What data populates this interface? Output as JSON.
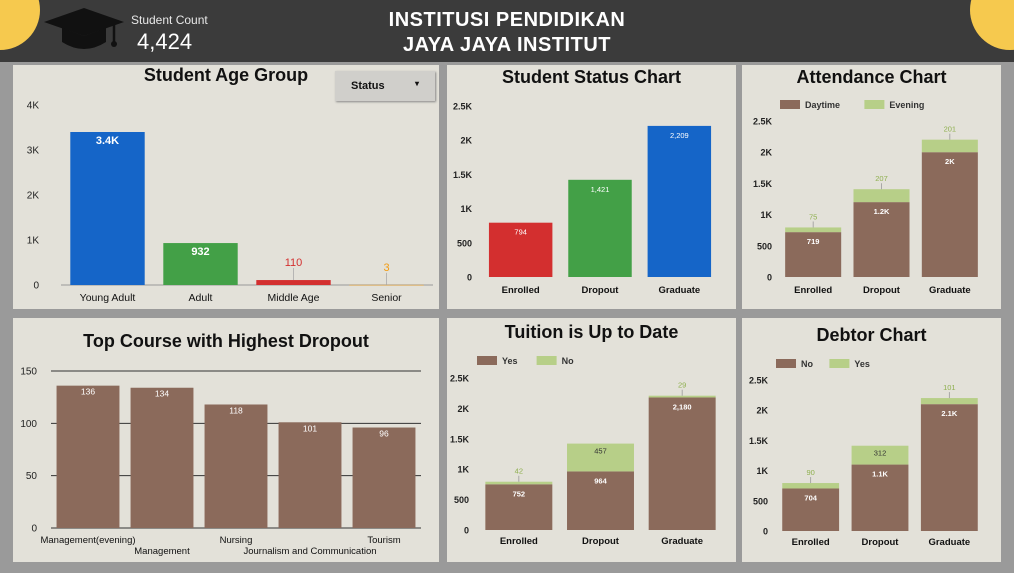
{
  "header": {
    "student_count_label": "Student Count",
    "student_count_value": "4,424",
    "title_line1": "INSTITUSI PENDIDIKAN",
    "title_line2": "JAYA JAYA INSTITUT"
  },
  "filter": {
    "label": "Status",
    "arrow": "▾"
  },
  "colors": {
    "blue": "#1565c8",
    "green": "#43a047",
    "red": "#d32f2f",
    "orange": "#f39c12",
    "brown": "#8b6a5b",
    "light_green": "#b7cf88",
    "panel": "#e3e1d9",
    "header": "#3b3b3b",
    "accent_yellow": "#f6c94e"
  },
  "chart_data": [
    {
      "id": "age",
      "type": "bar",
      "title": "Student Age Group",
      "categories": [
        "Young Adult",
        "Adult",
        "Middle Age",
        "Senior"
      ],
      "values": [
        3400,
        932,
        110,
        3
      ],
      "data_labels": [
        "3.4K",
        "932",
        "110",
        "3"
      ],
      "colors": [
        "#1565c8",
        "#43a047",
        "#d32f2f",
        "#f39c12"
      ],
      "ylim": [
        0,
        4000
      ],
      "yticks": [
        0,
        1000,
        2000,
        3000,
        4000
      ],
      "ytick_labels": [
        "0",
        "1K",
        "2K",
        "3K",
        "4K"
      ],
      "grid": false
    },
    {
      "id": "status",
      "type": "bar",
      "title": "Student Status Chart",
      "categories": [
        "Enrolled",
        "Dropout",
        "Graduate"
      ],
      "values": [
        794,
        1421,
        2209
      ],
      "data_labels": [
        "794",
        "1,421",
        "2,209"
      ],
      "colors": [
        "#d32f2f",
        "#43a047",
        "#1565c8"
      ],
      "ylim": [
        0,
        2500
      ],
      "yticks": [
        0,
        500,
        1000,
        1500,
        2000,
        2500
      ],
      "ytick_labels": [
        "0",
        "500",
        "1K",
        "1.5K",
        "2K",
        "2.5K"
      ],
      "grid": false
    },
    {
      "id": "attendance",
      "type": "bar",
      "stacked": true,
      "title": "Attendance Chart",
      "categories": [
        "Enrolled",
        "Dropout",
        "Graduate"
      ],
      "series": [
        {
          "name": "Daytime",
          "values": [
            719,
            1200,
            2000
          ],
          "labels": [
            "719",
            "1.2K",
            "2K"
          ],
          "color": "#8b6a5b"
        },
        {
          "name": "Evening",
          "values": [
            75,
            207,
            201
          ],
          "labels": [
            "75",
            "207",
            "201"
          ],
          "color": "#b7cf88"
        }
      ],
      "ylim": [
        0,
        2500
      ],
      "yticks": [
        0,
        500,
        1000,
        1500,
        2000,
        2500
      ],
      "ytick_labels": [
        "0",
        "500",
        "1K",
        "1.5K",
        "2K",
        "2.5K"
      ],
      "legend": "top-left",
      "grid": false
    },
    {
      "id": "course",
      "type": "bar",
      "title": "Top Course with Highest Dropout",
      "categories": [
        "Management(evening)",
        "Management",
        "Nursing",
        "Journalism and Communication",
        "Tourism"
      ],
      "values": [
        136,
        134,
        118,
        101,
        96
      ],
      "data_labels": [
        "136",
        "134",
        "118",
        "101",
        "96"
      ],
      "colors": [
        "#8b6a5b",
        "#8b6a5b",
        "#8b6a5b",
        "#8b6a5b",
        "#8b6a5b"
      ],
      "ylim": [
        0,
        150
      ],
      "yticks": [
        0,
        50,
        100,
        150
      ],
      "ytick_labels": [
        "0",
        "50",
        "100",
        "150"
      ],
      "grid": true
    },
    {
      "id": "tuition",
      "type": "bar",
      "stacked": true,
      "title": "Tuition is Up to Date",
      "categories": [
        "Enrolled",
        "Dropout",
        "Graduate"
      ],
      "series": [
        {
          "name": "Yes",
          "values": [
            752,
            964,
            2180
          ],
          "labels": [
            "752",
            "964",
            "2,180"
          ],
          "color": "#8b6a5b"
        },
        {
          "name": "No",
          "values": [
            42,
            457,
            29
          ],
          "labels": [
            "42",
            "457",
            "29"
          ],
          "color": "#b7cf88"
        }
      ],
      "ylim": [
        0,
        2500
      ],
      "yticks": [
        0,
        500,
        1000,
        1500,
        2000,
        2500
      ],
      "ytick_labels": [
        "0",
        "500",
        "1K",
        "1.5K",
        "2K",
        "2.5K"
      ],
      "legend": "top-left",
      "grid": false
    },
    {
      "id": "debtor",
      "type": "bar",
      "stacked": true,
      "title": "Debtor Chart",
      "categories": [
        "Enrolled",
        "Dropout",
        "Graduate"
      ],
      "series": [
        {
          "name": "No",
          "values": [
            704,
            1100,
            2100
          ],
          "labels": [
            "704",
            "1.1K",
            "2.1K"
          ],
          "color": "#8b6a5b"
        },
        {
          "name": "Yes",
          "values": [
            90,
            312,
            101
          ],
          "labels": [
            "90",
            "312",
            "101"
          ],
          "color": "#b7cf88"
        }
      ],
      "ylim": [
        0,
        2500
      ],
      "yticks": [
        0,
        500,
        1000,
        1500,
        2000,
        2500
      ],
      "ytick_labels": [
        "0",
        "500",
        "1K",
        "1.5K",
        "2K",
        "2.5K"
      ],
      "legend": "top-left",
      "grid": false
    }
  ]
}
